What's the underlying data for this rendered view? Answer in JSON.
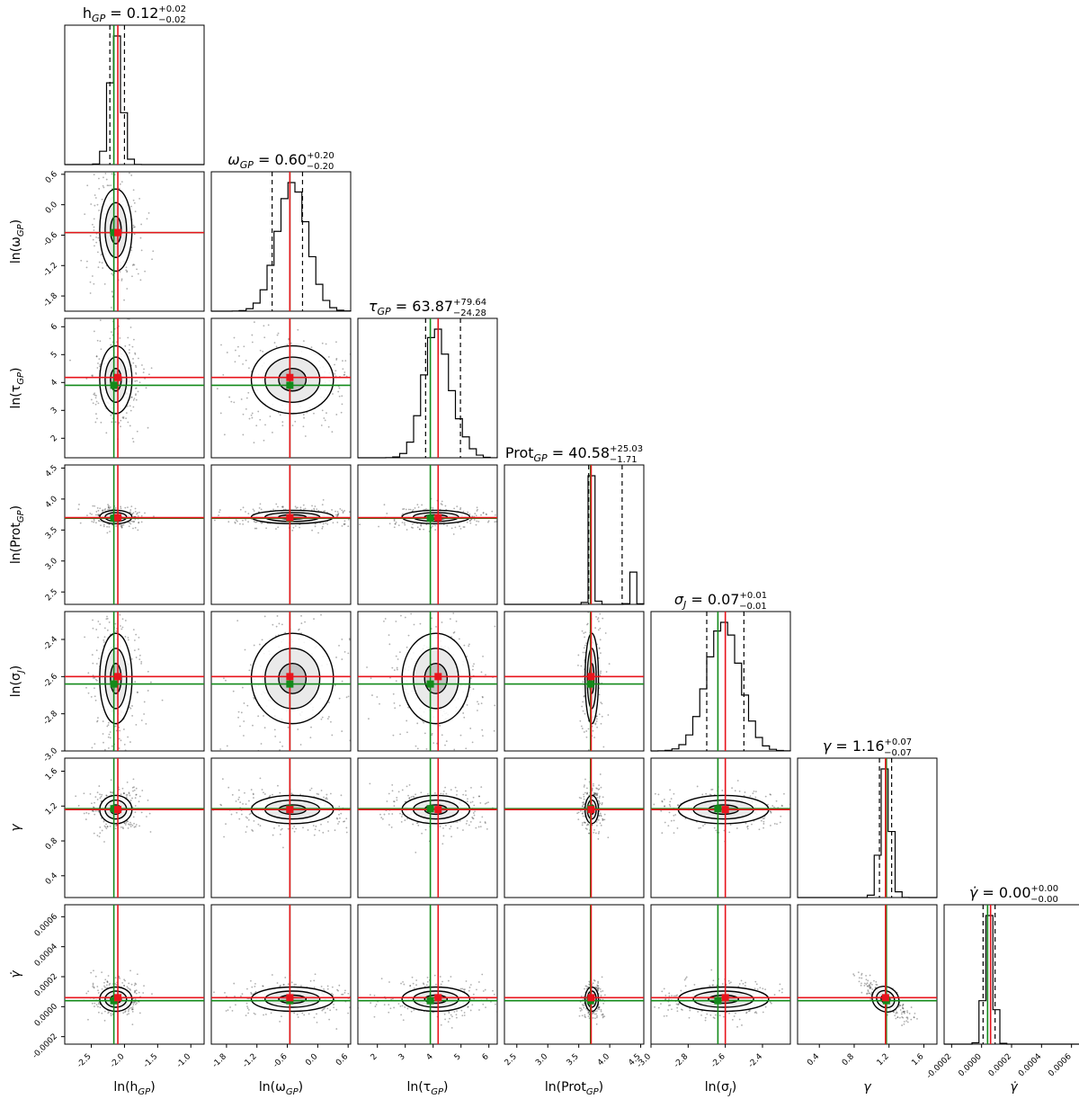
{
  "chart_data": {
    "type": "corner",
    "parameters": [
      {
        "label_base": "ln(h",
        "label_sub": "GP",
        "label_tail": ")",
        "title_base": "h",
        "title_sub": "GP",
        "title_italic_base": false,
        "median": "0.12",
        "err_plus": "+0.02",
        "err_minus": "−0.02",
        "range": [
          -2.9,
          -0.8
        ],
        "ticks": [
          "-2.5",
          "-2.0",
          "-1.5",
          "-1.0"
        ],
        "tick_values": [
          -2.5,
          -2.0,
          -1.5,
          -1.0
        ],
        "hist_center": -2.13,
        "hist_sd": 0.09,
        "q16": -2.22,
        "q84": -2.0,
        "red": -2.1,
        "green": -2.16
      },
      {
        "label_base": "ln(ω",
        "label_sub": "GP",
        "label_tail": ")",
        "title_base": "ω",
        "title_sub": "GP",
        "title_italic_base": true,
        "median": "0.60",
        "err_plus": "+0.20",
        "err_minus": "−0.20",
        "range": [
          -2.1,
          0.65
        ],
        "ticks": [
          "-1.8",
          "-1.2",
          "-0.6",
          "0.0",
          "0.6"
        ],
        "tick_values": [
          -1.8,
          -1.2,
          -0.6,
          0.0,
          0.6
        ],
        "hist_center": -0.5,
        "hist_sd": 0.3,
        "q16": -0.9,
        "q84": -0.3,
        "red": -0.55,
        "green": -0.55
      },
      {
        "label_base": "ln(τ",
        "label_sub": "GP",
        "label_tail": ")",
        "title_base": "τ",
        "title_sub": "GP",
        "title_italic_base": true,
        "median": "63.87",
        "err_plus": "+79.64",
        "err_minus": "−24.28",
        "range": [
          1.3,
          6.3
        ],
        "ticks": [
          "2",
          "3",
          "4",
          "5",
          "6"
        ],
        "tick_values": [
          2,
          3,
          4,
          5,
          6
        ],
        "hist_center": 4.1,
        "hist_sd": 0.45,
        "q16": 3.73,
        "q84": 4.98,
        "red": 4.18,
        "green": 3.9
      },
      {
        "label_base": "ln(Prot",
        "label_sub": "GP",
        "label_tail": ")",
        "title_base": "Prot",
        "title_sub": "GP",
        "title_italic_base": false,
        "median": "40.58",
        "err_plus": "+25.03",
        "err_minus": "−1.71",
        "range": [
          2.3,
          4.55
        ],
        "ticks": [
          "2.5",
          "3.0",
          "3.5",
          "4.0",
          "4.5"
        ],
        "tick_values": [
          2.5,
          3.0,
          3.5,
          4.0,
          4.5
        ],
        "hist_center": 3.71,
        "hist_sd": 0.04,
        "q16": 3.66,
        "q84": 4.2,
        "red": 3.7,
        "green": 3.69
      },
      {
        "label_base": "ln(σ",
        "label_sub": "J",
        "label_tail": ")",
        "title_base": "σ",
        "title_sub": "J",
        "title_italic_base": true,
        "median": "0.07",
        "err_plus": "+0.01",
        "err_minus": "−0.01",
        "range": [
          -3.0,
          -2.25
        ],
        "ticks": [
          "-3.0",
          "-2.8",
          "-2.6",
          "-2.4"
        ],
        "tick_values": [
          -3.0,
          -2.8,
          -2.6,
          -2.4
        ],
        "hist_center": -2.61,
        "hist_sd": 0.09,
        "q16": -2.7,
        "q84": -2.5,
        "red": -2.6,
        "green": -2.64
      },
      {
        "label_base": "γ",
        "label_sub": "",
        "label_tail": "",
        "title_base": "γ",
        "title_sub": "",
        "title_italic_base": true,
        "median": "1.16",
        "err_plus": "+0.07",
        "err_minus": "−0.07",
        "range": [
          0.15,
          1.75
        ],
        "ticks": [
          "0.4",
          "0.8",
          "1.2",
          "1.6"
        ],
        "tick_values": [
          0.4,
          0.8,
          1.2,
          1.6
        ],
        "hist_center": 1.16,
        "hist_sd": 0.06,
        "q16": 1.09,
        "q84": 1.23,
        "red": 1.16,
        "green": 1.17
      },
      {
        "label_base": "γ̇",
        "label_sub": "",
        "label_tail": "",
        "title_base": "γ̇",
        "title_sub": "",
        "title_italic_base": true,
        "median": "0.00",
        "err_plus": "+0.00",
        "err_minus": "−0.00",
        "range": [
          -0.00025,
          0.00068
        ],
        "ticks": [
          "-0.0002",
          "0.0000",
          "0.0002",
          "0.0004",
          "0.0006"
        ],
        "tick_values": [
          -0.0002,
          0.0,
          0.0002,
          0.0004,
          0.0006
        ],
        "hist_center": 5e-05,
        "hist_sd": 3e-05,
        "q16": 1e-05,
        "q84": 9e-05,
        "red": 6e-05,
        "green": 4e-05
      }
    ],
    "colors": {
      "truth_red": "#e8141c",
      "truth_green": "#138a1a",
      "quantile": "#000000",
      "scatter": "#1a1a1a",
      "frame": "#000000"
    },
    "features": {
      "histograms": true,
      "quantile_lines": "dashed",
      "contour_levels": 3,
      "scatter_points": true,
      "grid": false,
      "legend": "none"
    }
  }
}
